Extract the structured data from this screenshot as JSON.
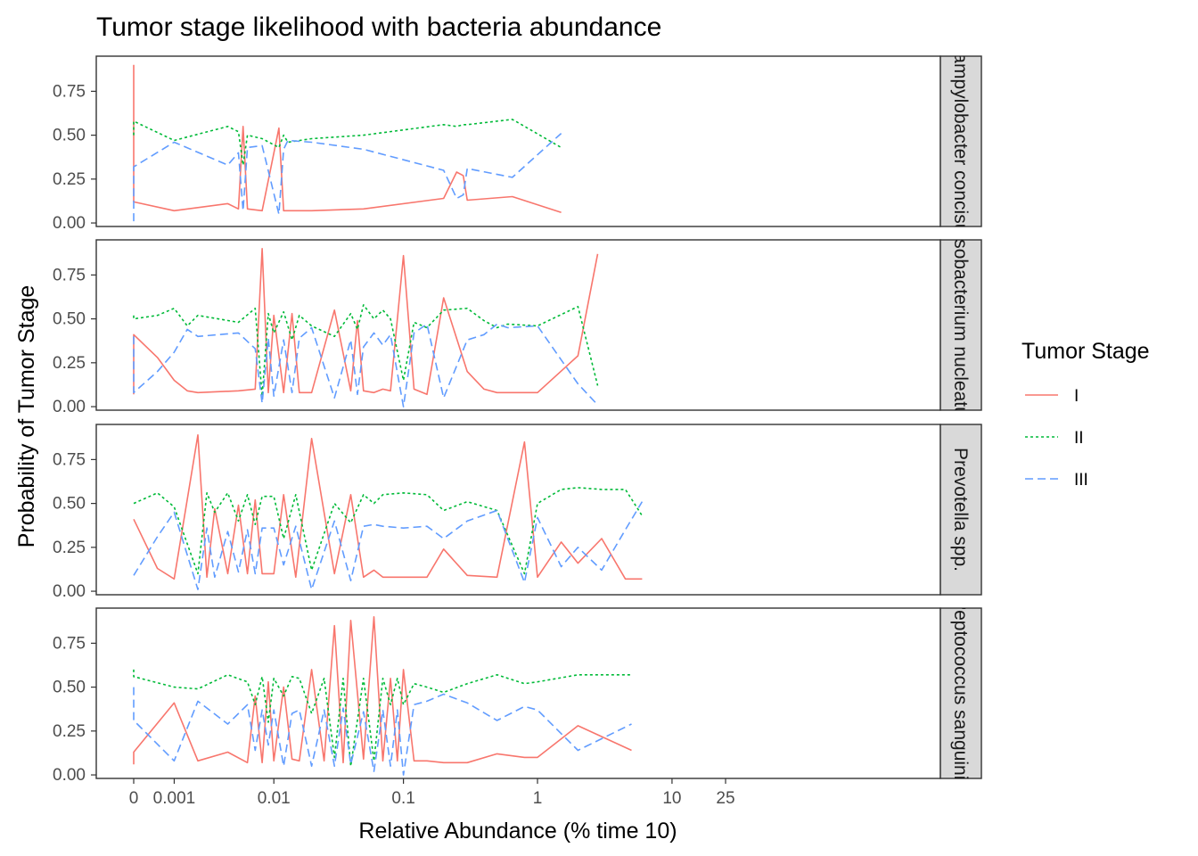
{
  "chart_data": {
    "type": "line",
    "title": "Tumor stage likelihood with bacteria abundance",
    "xlabel": "Relative Abundance (% time 10)",
    "ylabel": "Probability of Tumor Stage",
    "x_scale": "pseudo-log",
    "x_ticks": [
      0,
      0.001,
      0.01,
      0.1,
      1,
      10,
      25
    ],
    "x_tick_labels": [
      "0",
      "0.001",
      "0.01",
      "0.1",
      "1",
      "10",
      "25"
    ],
    "xlim": [
      0,
      30
    ],
    "y_ticks": [
      0,
      0.25,
      0.5,
      0.75
    ],
    "y_tick_labels": [
      "0.00",
      "0.25",
      "0.50",
      "0.75"
    ],
    "ylim": [
      -0.02,
      0.95
    ],
    "legend": {
      "title": "Tumor Stage",
      "position": "right",
      "entries": [
        {
          "label": "I",
          "color": "#F8766D",
          "dash": "solid"
        },
        {
          "label": "II",
          "color": "#00BA38",
          "dash": "dotted"
        },
        {
          "label": "III",
          "color": "#619CFF",
          "dash": "dashed"
        }
      ]
    },
    "panels": [
      {
        "strip": "Campylobacter concisus",
        "x": [
          0,
          0,
          0.001,
          0.004,
          0.005,
          0.0055,
          0.006,
          0.008,
          0.011,
          0.012,
          0.013,
          0.02,
          0.05,
          0.2,
          0.25,
          0.28,
          0.3,
          0.65,
          1.5
        ],
        "series": [
          {
            "name": "I",
            "values": [
              0.9,
              0.12,
              0.07,
              0.11,
              0.08,
              0.55,
              0.08,
              0.07,
              0.54,
              0.07,
              0.07,
              0.07,
              0.08,
              0.14,
              0.29,
              0.27,
              0.13,
              0.15,
              0.06
            ]
          },
          {
            "name": "II",
            "values": [
              0.5,
              0.58,
              0.47,
              0.55,
              0.52,
              0.33,
              0.5,
              0.48,
              0.43,
              0.5,
              0.46,
              0.48,
              0.5,
              0.56,
              0.55,
              0.56,
              0.56,
              0.59,
              0.43
            ]
          },
          {
            "name": "III",
            "values": [
              0.01,
              0.32,
              0.46,
              0.33,
              0.4,
              0.07,
              0.43,
              0.44,
              0.05,
              0.42,
              0.47,
              0.46,
              0.42,
              0.3,
              0.14,
              0.16,
              0.31,
              0.26,
              0.51
            ]
          }
        ]
      },
      {
        "strip": "Fusobacterium nucleatum",
        "x": [
          0,
          0,
          0.0005,
          0.001,
          0.0015,
          0.002,
          0.005,
          0.007,
          0.008,
          0.009,
          0.01,
          0.012,
          0.014,
          0.016,
          0.02,
          0.03,
          0.04,
          0.045,
          0.05,
          0.06,
          0.07,
          0.08,
          0.1,
          0.12,
          0.15,
          0.2,
          0.3,
          0.4,
          0.5,
          0.6,
          1.0,
          2.0,
          2.8
        ],
        "series": [
          {
            "name": "I",
            "values": [
              0.07,
              0.41,
              0.28,
              0.15,
              0.09,
              0.08,
              0.09,
              0.1,
              0.9,
              0.08,
              0.52,
              0.08,
              0.53,
              0.08,
              0.08,
              0.55,
              0.09,
              0.49,
              0.09,
              0.08,
              0.1,
              0.09,
              0.86,
              0.1,
              0.07,
              0.62,
              0.2,
              0.1,
              0.08,
              0.08,
              0.08,
              0.29,
              0.87
            ]
          },
          {
            "name": "II",
            "values": [
              0.52,
              0.5,
              0.52,
              0.56,
              0.46,
              0.52,
              0.48,
              0.56,
              0.06,
              0.53,
              0.42,
              0.54,
              0.38,
              0.52,
              0.46,
              0.4,
              0.53,
              0.44,
              0.58,
              0.5,
              0.55,
              0.5,
              0.15,
              0.48,
              0.45,
              0.55,
              0.56,
              0.49,
              0.45,
              0.47,
              0.46,
              0.57,
              0.12
            ]
          },
          {
            "name": "III",
            "values": [
              0.4,
              0.08,
              0.2,
              0.31,
              0.44,
              0.4,
              0.42,
              0.33,
              0.02,
              0.39,
              0.06,
              0.38,
              0.08,
              0.39,
              0.45,
              0.05,
              0.38,
              0.07,
              0.34,
              0.42,
              0.35,
              0.41,
              0.0,
              0.42,
              0.47,
              0.05,
              0.38,
              0.41,
              0.47,
              0.45,
              0.46,
              0.13,
              0.01
            ]
          }
        ]
      },
      {
        "strip": "Prevotella spp.",
        "x": [
          0,
          0.0005,
          0.001,
          0.002,
          0.0025,
          0.003,
          0.004,
          0.005,
          0.006,
          0.007,
          0.008,
          0.01,
          0.012,
          0.015,
          0.02,
          0.03,
          0.04,
          0.05,
          0.06,
          0.07,
          0.1,
          0.15,
          0.2,
          0.3,
          0.5,
          0.8,
          1.0,
          1.5,
          2.0,
          3.0,
          4.5,
          6.0
        ],
        "series": [
          {
            "name": "I",
            "values": [
              0.41,
              0.13,
              0.07,
              0.89,
              0.08,
              0.47,
              0.1,
              0.49,
              0.1,
              0.52,
              0.1,
              0.1,
              0.55,
              0.08,
              0.87,
              0.1,
              0.55,
              0.08,
              0.12,
              0.08,
              0.08,
              0.08,
              0.24,
              0.09,
              0.08,
              0.85,
              0.08,
              0.28,
              0.16,
              0.3,
              0.07,
              0.07
            ]
          },
          {
            "name": "II",
            "values": [
              0.5,
              0.56,
              0.48,
              0.1,
              0.56,
              0.45,
              0.56,
              0.4,
              0.55,
              0.38,
              0.54,
              0.54,
              0.3,
              0.55,
              0.12,
              0.5,
              0.39,
              0.55,
              0.5,
              0.55,
              0.56,
              0.55,
              0.46,
              0.51,
              0.46,
              0.1,
              0.5,
              0.58,
              0.59,
              0.58,
              0.58,
              0.43
            ]
          },
          {
            "name": "III",
            "values": [
              0.09,
              0.31,
              0.45,
              0.01,
              0.36,
              0.08,
              0.34,
              0.11,
              0.35,
              0.1,
              0.36,
              0.36,
              0.15,
              0.37,
              0.01,
              0.4,
              0.06,
              0.37,
              0.38,
              0.37,
              0.36,
              0.37,
              0.3,
              0.4,
              0.46,
              0.05,
              0.42,
              0.14,
              0.25,
              0.12,
              0.35,
              0.51
            ]
          }
        ]
      },
      {
        "strip": "Peptococcus sanguinis",
        "x": [
          0,
          0,
          0.001,
          0.002,
          0.004,
          0.006,
          0.007,
          0.008,
          0.009,
          0.01,
          0.012,
          0.014,
          0.016,
          0.02,
          0.025,
          0.03,
          0.035,
          0.04,
          0.05,
          0.06,
          0.07,
          0.08,
          0.09,
          0.1,
          0.12,
          0.15,
          0.2,
          0.3,
          0.5,
          0.8,
          1.0,
          2.0,
          5.0
        ],
        "series": [
          {
            "name": "I",
            "values": [
              0.06,
              0.13,
              0.41,
              0.08,
              0.13,
              0.07,
              0.45,
              0.07,
              0.53,
              0.08,
              0.5,
              0.09,
              0.08,
              0.6,
              0.08,
              0.85,
              0.07,
              0.88,
              0.09,
              0.9,
              0.08,
              0.55,
              0.08,
              0.6,
              0.08,
              0.08,
              0.07,
              0.07,
              0.12,
              0.1,
              0.1,
              0.28,
              0.14
            ]
          },
          {
            "name": "II",
            "values": [
              0.6,
              0.56,
              0.5,
              0.49,
              0.57,
              0.53,
              0.4,
              0.56,
              0.3,
              0.55,
              0.45,
              0.56,
              0.55,
              0.35,
              0.55,
              0.1,
              0.55,
              0.05,
              0.55,
              0.08,
              0.55,
              0.4,
              0.55,
              0.4,
              0.52,
              0.5,
              0.47,
              0.52,
              0.57,
              0.52,
              0.53,
              0.57,
              0.57
            ]
          },
          {
            "name": "III",
            "values": [
              0.5,
              0.31,
              0.08,
              0.42,
              0.29,
              0.4,
              0.14,
              0.37,
              0.17,
              0.37,
              0.05,
              0.35,
              0.37,
              0.05,
              0.37,
              0.05,
              0.38,
              0.06,
              0.36,
              0.02,
              0.37,
              0.05,
              0.37,
              0.0,
              0.4,
              0.42,
              0.46,
              0.41,
              0.31,
              0.39,
              0.37,
              0.14,
              0.29
            ]
          }
        ]
      }
    ]
  }
}
